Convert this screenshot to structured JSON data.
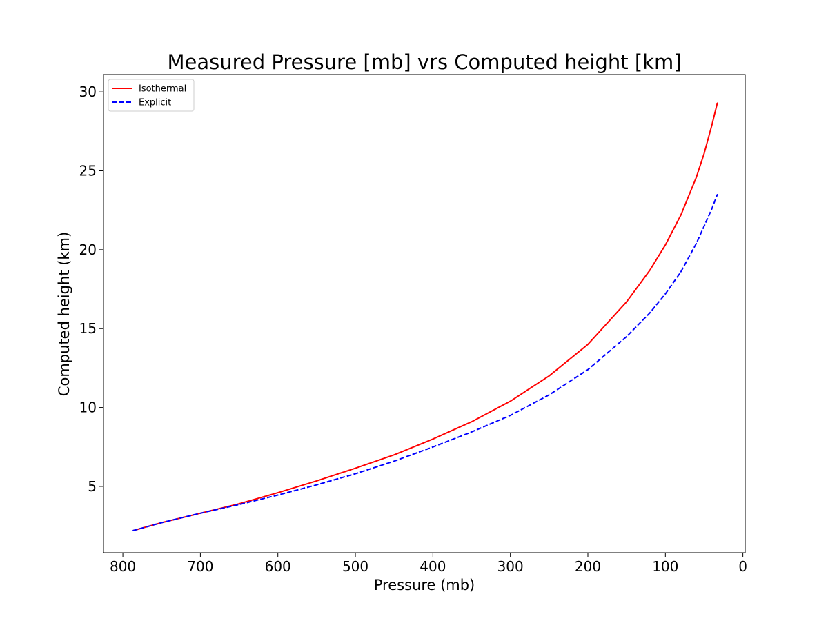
{
  "chart_data": {
    "type": "line",
    "title": "Measured Pressure [mb] vrs Computed height [km]",
    "xlabel": "Pressure (mb)",
    "ylabel": "Computed height (km)",
    "xlim": [
      825,
      -3
    ],
    "ylim": [
      0.8,
      31.1
    ],
    "x_inverted": true,
    "xticks": [
      800,
      700,
      600,
      500,
      400,
      300,
      200,
      100,
      0
    ],
    "yticks": [
      5,
      10,
      15,
      20,
      25,
      30
    ],
    "grid": false,
    "legend_position": "top-left",
    "series": [
      {
        "name": "Isothermal",
        "color": "#ff0000",
        "style": "solid",
        "x": [
          787,
          750,
          700,
          650,
          600,
          550,
          500,
          450,
          400,
          350,
          300,
          250,
          200,
          150,
          120,
          100,
          80,
          60,
          50,
          40,
          33
        ],
        "y": [
          2.2,
          2.7,
          3.3,
          3.9,
          4.6,
          5.35,
          6.15,
          7.0,
          8.0,
          9.1,
          10.4,
          12.0,
          14.0,
          16.7,
          18.7,
          20.3,
          22.2,
          24.6,
          26.1,
          27.9,
          29.3
        ]
      },
      {
        "name": "Explicit",
        "color": "#0000ff",
        "style": "dashed",
        "x": [
          787,
          750,
          700,
          650,
          600,
          550,
          500,
          450,
          400,
          350,
          300,
          250,
          200,
          150,
          120,
          100,
          80,
          60,
          50,
          40,
          33
        ],
        "y": [
          2.2,
          2.7,
          3.3,
          3.85,
          4.45,
          5.1,
          5.8,
          6.6,
          7.5,
          8.45,
          9.5,
          10.8,
          12.4,
          14.5,
          16.0,
          17.2,
          18.6,
          20.4,
          21.5,
          22.6,
          23.5
        ]
      }
    ]
  }
}
